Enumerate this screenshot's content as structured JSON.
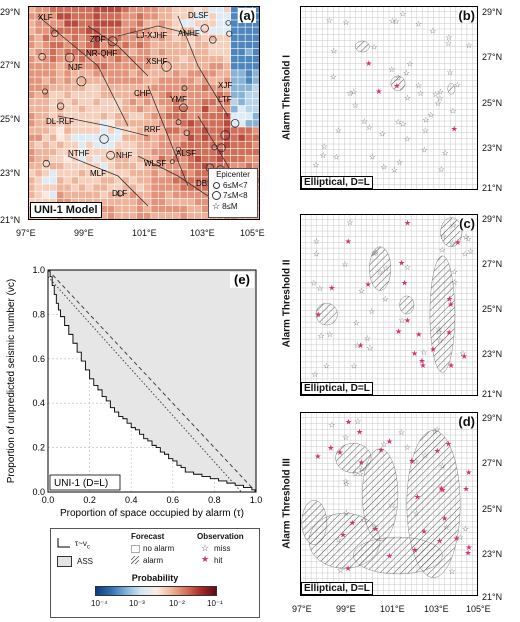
{
  "panel_a": {
    "label": "(a)",
    "model_label": "UNI-1 Model",
    "x_ticks": [
      "97°E",
      "99°E",
      "101°E",
      "103°E",
      "105°E"
    ],
    "y_ticks": [
      "29°N",
      "27°N",
      "25°N",
      "23°N",
      "21°N"
    ],
    "fault_labels": [
      "XLF",
      "ZDF",
      "LJ-XJHF",
      "NJF",
      "NR-QHF",
      "ANHF",
      "XSHF",
      "DLSF",
      "CHF",
      "YMF",
      "LTF",
      "XJF",
      "DL-RLF",
      "RRF",
      "NTHF",
      "WLSF",
      "MLF",
      "NHF",
      "DLF",
      "ALSF",
      "DBFF"
    ],
    "epicenter_legend": {
      "title": "Epicenter",
      "items": [
        "6≤M<7",
        "7≤M<8",
        "8≤M"
      ]
    }
  },
  "panel_b": {
    "label": "(b)",
    "side_label": "Alarm Threshold I",
    "box_label": "Elliptical, D=L",
    "y_ticks": [
      "29°N",
      "27°N",
      "25°N",
      "23°N",
      "21°N"
    ]
  },
  "panel_c": {
    "label": "(c)",
    "side_label": "Alarm Threshold II",
    "box_label": "Elliptical, D=L",
    "y_ticks": [
      "29°N",
      "27°N",
      "25°N",
      "23°N",
      "21°N"
    ]
  },
  "panel_d": {
    "label": "(d)",
    "side_label": "Alarm Threshold III",
    "box_label": "Elliptical, D=L",
    "y_ticks": [
      "29°N",
      "27°N",
      "25°N",
      "23°N",
      "21°N"
    ],
    "x_ticks": [
      "97°E",
      "99°E",
      "101°E",
      "103°E",
      "105°E"
    ]
  },
  "panel_e": {
    "label": "(e)",
    "model_label": "UNI-1 (D=L)"
  },
  "legend": {
    "curve_label": "τ~ν",
    "curve_sub": "c",
    "ass_label": "ASS",
    "forecast_title": "Forecast",
    "no_alarm": "no alarm",
    "alarm": "alarm",
    "observation_title": "Observation",
    "miss": "miss",
    "hit": "hit",
    "probability_title": "Probability",
    "prob_ticks": [
      "10⁻⁴",
      "10⁻³",
      "10⁻²",
      "10⁻¹"
    ]
  },
  "chart_data": {
    "type": "line",
    "title": "",
    "xlabel": "Proportion of space occupied by alarm (τ)",
    "ylabel": "Proportion of unpredicted seismic number (νc)",
    "xlim": [
      0,
      1
    ],
    "ylim": [
      0,
      1
    ],
    "x_ticks": [
      "0.0",
      "0.2",
      "0.4",
      "0.6",
      "0.8",
      "1.0"
    ],
    "y_ticks": [
      "0.0",
      "0.2",
      "0.4",
      "0.6",
      "0.8",
      "1.0"
    ],
    "grid": true,
    "series": [
      {
        "name": "τ~νc",
        "style": "step",
        "x": [
          0,
          0.01,
          0.02,
          0.03,
          0.04,
          0.05,
          0.06,
          0.08,
          0.1,
          0.12,
          0.14,
          0.16,
          0.18,
          0.2,
          0.22,
          0.24,
          0.26,
          0.28,
          0.3,
          0.32,
          0.34,
          0.36,
          0.38,
          0.4,
          0.42,
          0.44,
          0.46,
          0.48,
          0.5,
          0.52,
          0.54,
          0.56,
          0.58,
          0.6,
          0.62,
          0.64,
          0.66,
          0.7,
          0.74,
          0.78,
          0.82,
          0.86,
          0.9,
          0.94,
          0.98,
          1.0
        ],
        "y": [
          1.0,
          0.97,
          0.93,
          0.89,
          0.85,
          0.82,
          0.79,
          0.75,
          0.71,
          0.67,
          0.63,
          0.59,
          0.55,
          0.51,
          0.48,
          0.46,
          0.43,
          0.41,
          0.38,
          0.36,
          0.34,
          0.33,
          0.31,
          0.29,
          0.28,
          0.26,
          0.24,
          0.23,
          0.21,
          0.2,
          0.18,
          0.17,
          0.15,
          0.14,
          0.12,
          0.11,
          0.09,
          0.08,
          0.07,
          0.06,
          0.05,
          0.04,
          0.03,
          0.02,
          0.01,
          0.0
        ]
      },
      {
        "name": "",
        "style": "dashed",
        "x": [
          0,
          1
        ],
        "y": [
          1,
          0
        ]
      },
      {
        "name": "",
        "style": "dotted",
        "x": [
          0,
          0.93
        ],
        "y": [
          0.97,
          0
        ]
      }
    ]
  }
}
